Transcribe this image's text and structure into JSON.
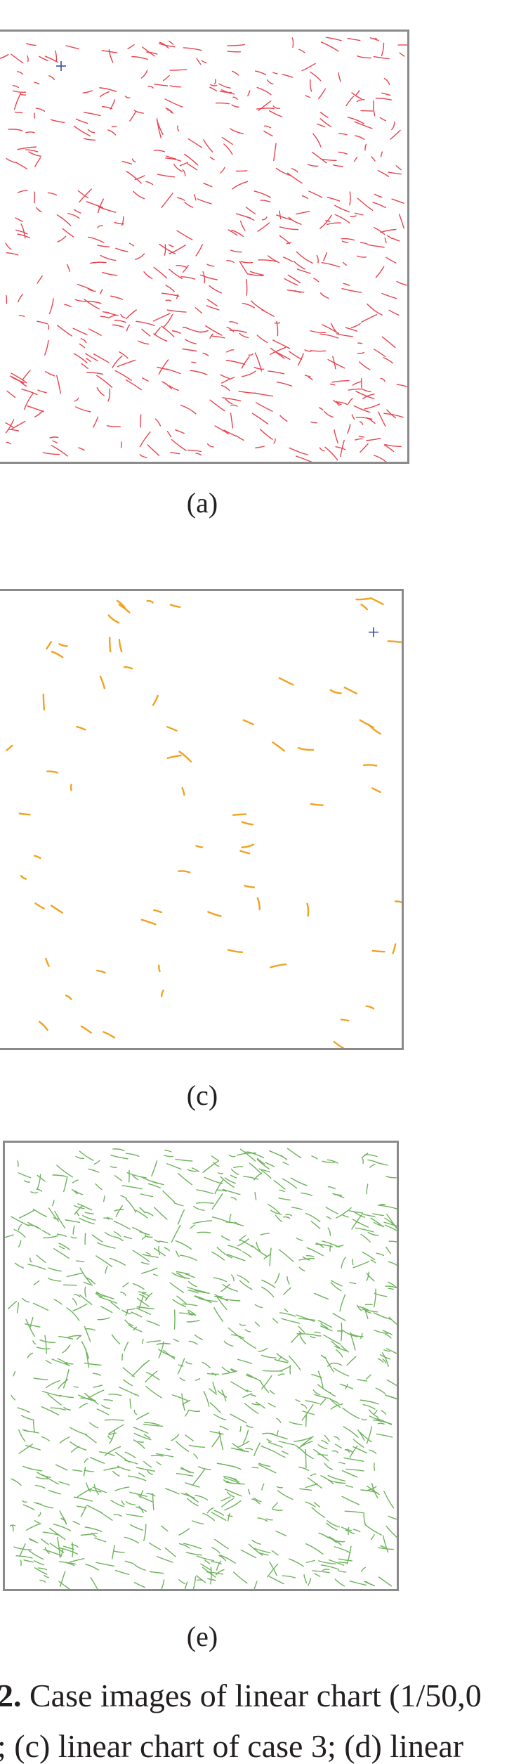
{
  "figure": {
    "panels": [
      {
        "id": "a",
        "label": "(a)",
        "color": "#e8434e",
        "density": "high",
        "marker": "blue-plus"
      },
      {
        "id": "c",
        "label": "(c)",
        "color": "#f2a11f",
        "density": "low",
        "marker": "blue-plus"
      },
      {
        "id": "e",
        "label": "(e)",
        "color": "#6cb35a",
        "density": "very-high"
      }
    ],
    "marker_color": "#3a4fa0",
    "border_color": "#8a8a8a",
    "caption": {
      "number": "2.",
      "line1": " Case images of linear chart (1/50,0",
      "line2": "; (c) linear chart of case 3; (d) linear"
    }
  }
}
